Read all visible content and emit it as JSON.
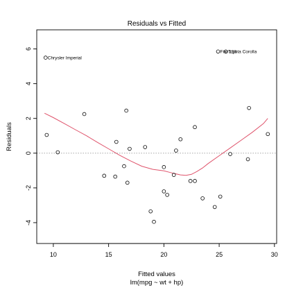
{
  "chart_data": {
    "type": "scatter",
    "title": "Residuals vs Fitted",
    "xlabel": "Fitted values",
    "xlabel_sub": "lm(mpg ~ wt + hp)",
    "ylabel": "Residuals",
    "xlim": [
      8.5,
      30.2
    ],
    "ylim": [
      -5.2,
      7.1
    ],
    "xticks": [
      10,
      15,
      20,
      25,
      30
    ],
    "yticks": [
      -4,
      -2,
      0,
      2,
      4,
      6
    ],
    "reference_line_y": 0,
    "points": [
      {
        "x": 9.3,
        "y": 5.5
      },
      {
        "x": 9.4,
        "y": 1.05
      },
      {
        "x": 10.4,
        "y": 0.05
      },
      {
        "x": 12.8,
        "y": 2.25
      },
      {
        "x": 14.6,
        "y": -1.3
      },
      {
        "x": 15.6,
        "y": -1.35
      },
      {
        "x": 15.7,
        "y": 0.65
      },
      {
        "x": 16.4,
        "y": -0.75
      },
      {
        "x": 16.6,
        "y": 2.45
      },
      {
        "x": 16.7,
        "y": -1.7
      },
      {
        "x": 16.9,
        "y": 0.25
      },
      {
        "x": 18.3,
        "y": 0.35
      },
      {
        "x": 18.8,
        "y": -3.35
      },
      {
        "x": 19.1,
        "y": -3.95
      },
      {
        "x": 20.0,
        "y": -2.2
      },
      {
        "x": 20.0,
        "y": -0.8
      },
      {
        "x": 20.3,
        "y": -2.4
      },
      {
        "x": 20.9,
        "y": -1.25
      },
      {
        "x": 21.1,
        "y": 0.15
      },
      {
        "x": 21.5,
        "y": 0.8
      },
      {
        "x": 22.4,
        "y": -1.6
      },
      {
        "x": 22.8,
        "y": -1.6
      },
      {
        "x": 22.8,
        "y": 1.5
      },
      {
        "x": 23.5,
        "y": -2.6
      },
      {
        "x": 24.6,
        "y": -3.1
      },
      {
        "x": 24.9,
        "y": 5.85
      },
      {
        "x": 25.1,
        "y": -2.5
      },
      {
        "x": 25.6,
        "y": 5.85
      },
      {
        "x": 26.0,
        "y": -0.05
      },
      {
        "x": 27.6,
        "y": -0.35
      },
      {
        "x": 27.7,
        "y": 2.6
      },
      {
        "x": 29.4,
        "y": 1.1
      }
    ],
    "point_labels": [
      {
        "text": "Chrysler Imperial",
        "x": 9.3,
        "y": 5.5
      },
      {
        "text": "Fiat 128",
        "x": 24.9,
        "y": 5.85
      },
      {
        "text": "Toyota Corolla",
        "x": 25.6,
        "y": 5.85
      }
    ],
    "smooth": {
      "color": "#df536b",
      "x": [
        9.2,
        10,
        11,
        12,
        13,
        14,
        15,
        16,
        17,
        18,
        19,
        20,
        20.5,
        21,
        21.5,
        22,
        22.5,
        23,
        23.5,
        24,
        25,
        26,
        27,
        28,
        29,
        29.4
      ],
      "y": [
        2.3,
        2.05,
        1.7,
        1.35,
        1.0,
        0.62,
        0.25,
        -0.12,
        -0.45,
        -0.75,
        -0.93,
        -1.02,
        -1.1,
        -1.18,
        -1.25,
        -1.28,
        -1.22,
        -1.05,
        -0.85,
        -0.6,
        -0.15,
        0.3,
        0.75,
        1.2,
        1.7,
        2.0
      ]
    }
  }
}
